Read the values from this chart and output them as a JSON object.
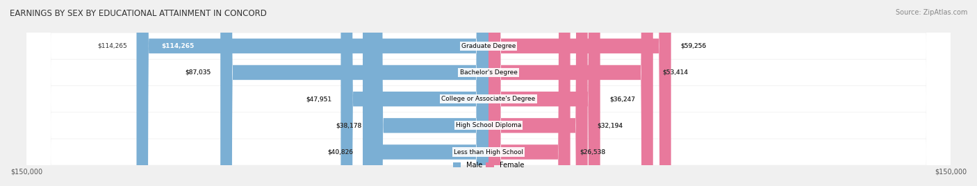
{
  "title": "EARNINGS BY SEX BY EDUCATIONAL ATTAINMENT IN CONCORD",
  "source": "Source: ZipAtlas.com",
  "categories": [
    "Less than High School",
    "High School Diploma",
    "College or Associate's Degree",
    "Bachelor's Degree",
    "Graduate Degree"
  ],
  "male_values": [
    40826,
    38178,
    47951,
    87035,
    114265
  ],
  "female_values": [
    26538,
    32194,
    36247,
    53414,
    59256
  ],
  "male_color": "#7bafd4",
  "female_color": "#e8799c",
  "max_value": 150000,
  "background_color": "#f0f0f0",
  "row_bg_color": "#e8e8e8",
  "label_color": "#333333",
  "title_fontsize": 10,
  "bar_height": 0.55,
  "figsize": [
    14.06,
    2.68
  ],
  "dpi": 100
}
